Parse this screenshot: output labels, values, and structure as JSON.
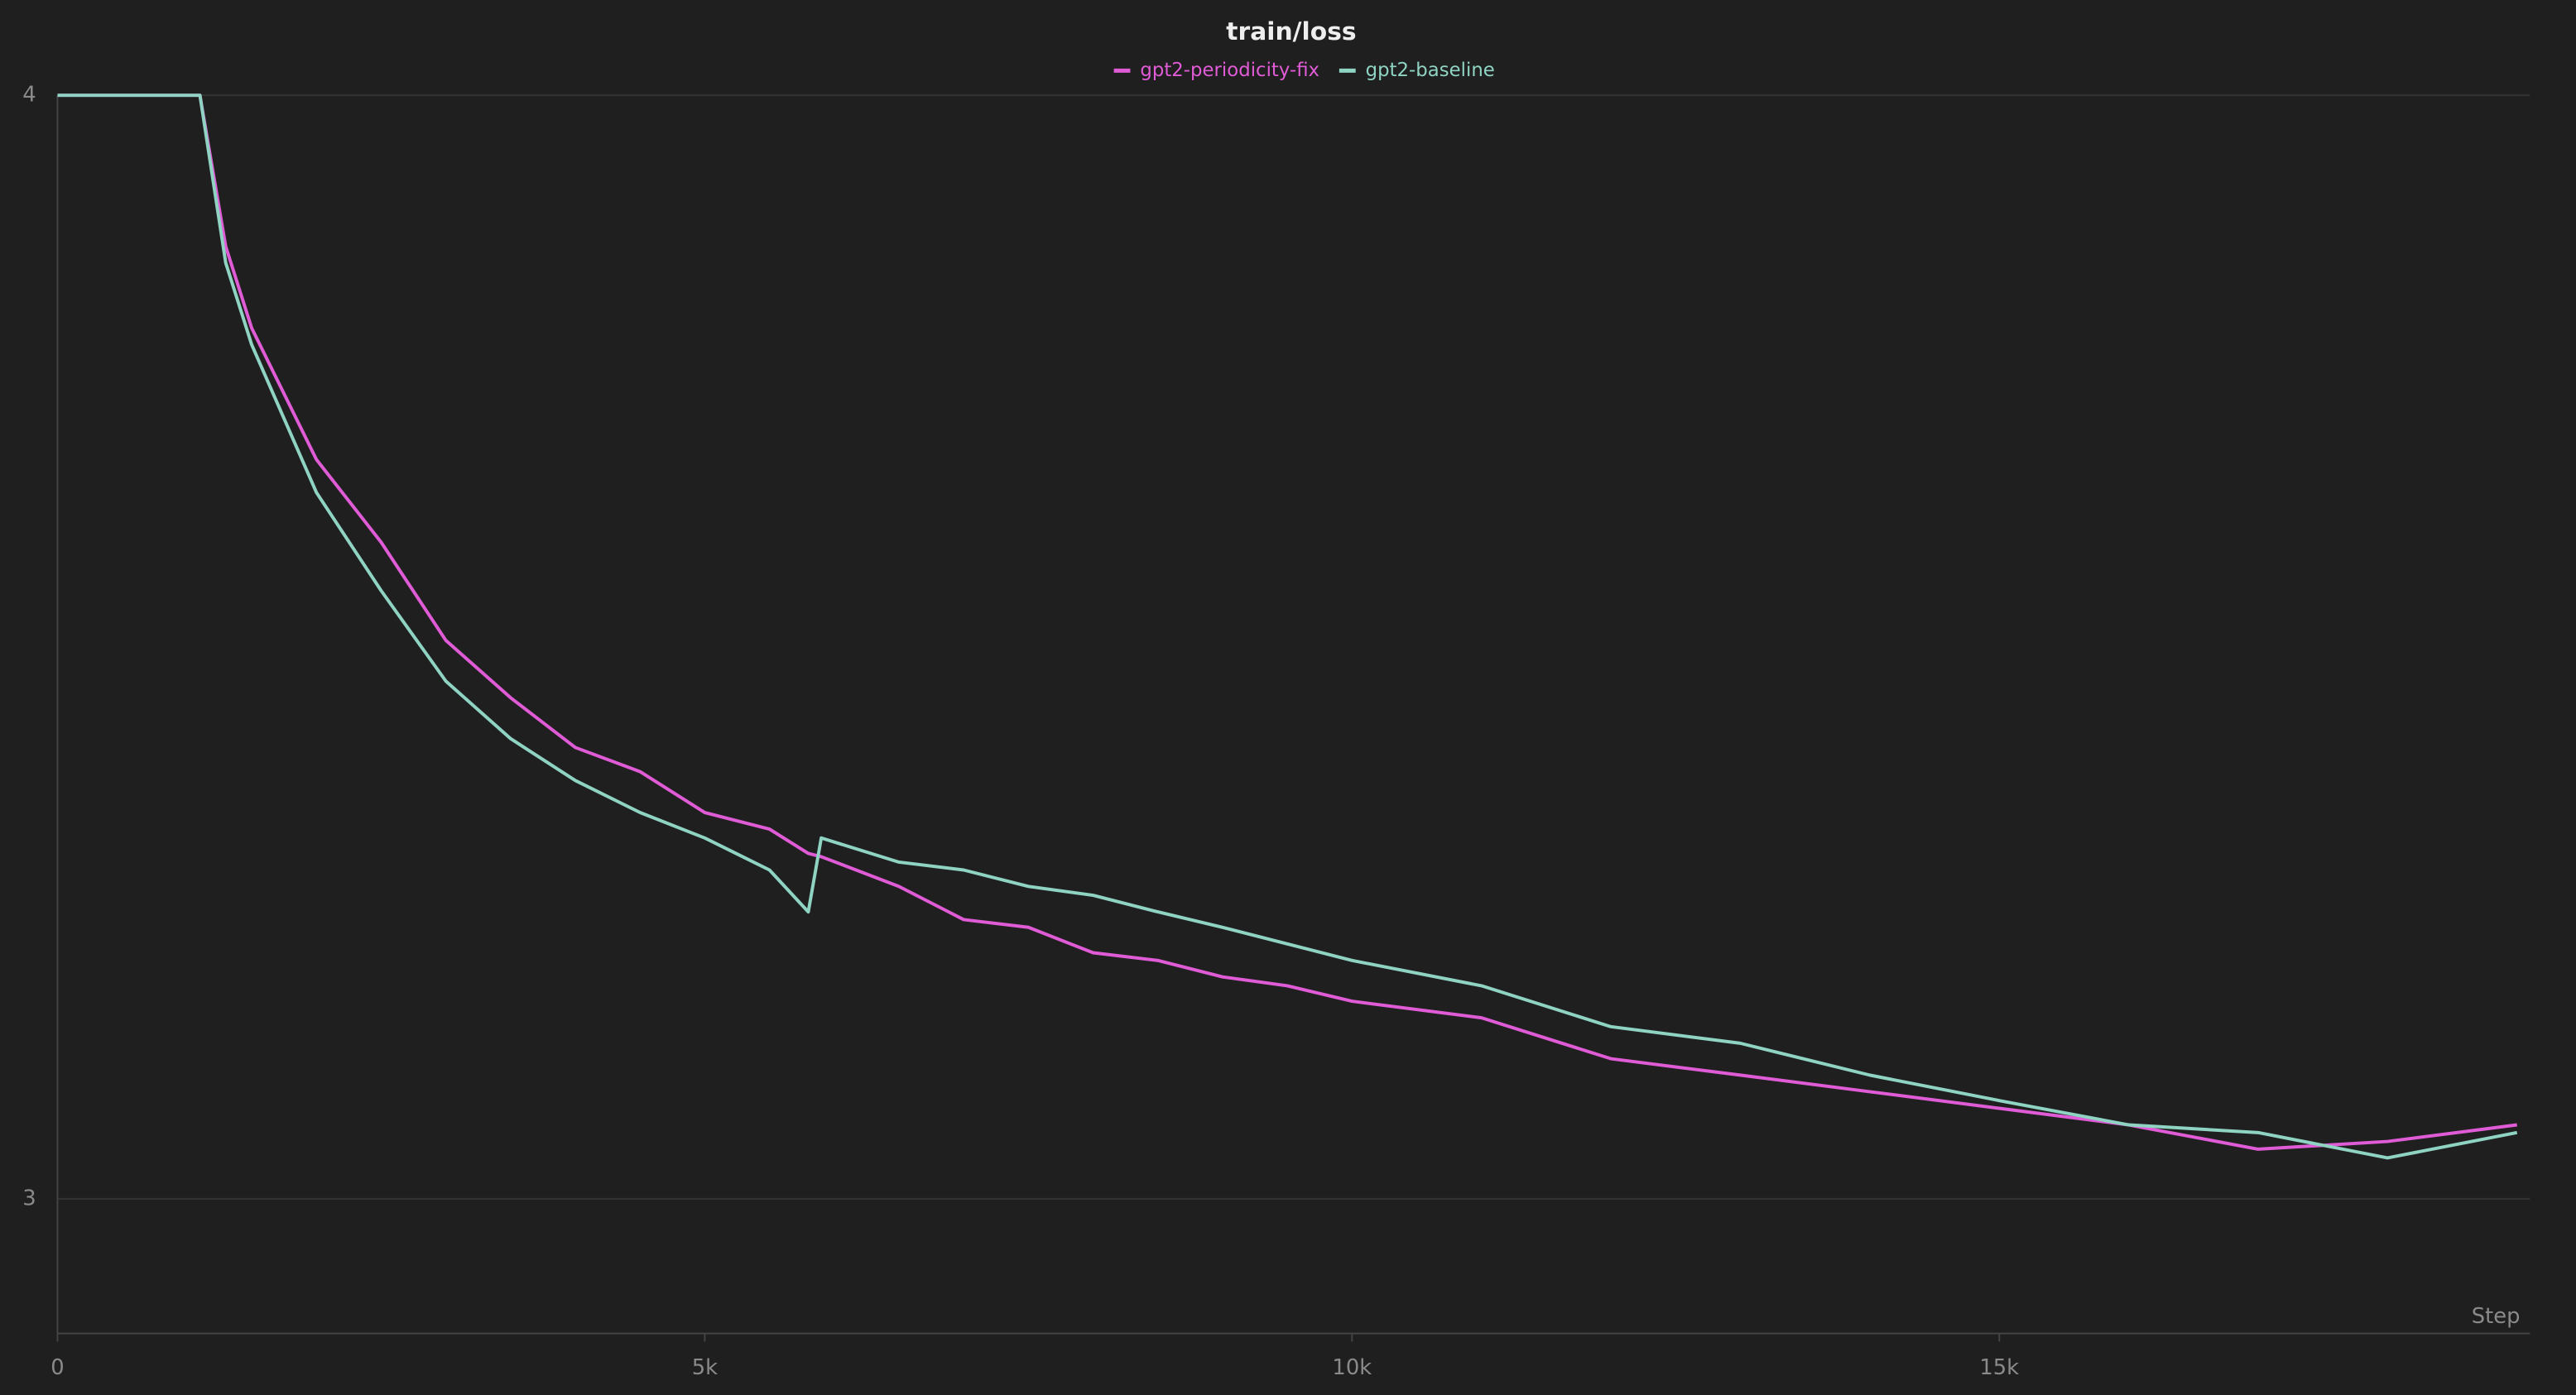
{
  "chart_data": {
    "type": "line",
    "title": "train/loss",
    "xlabel": "Step",
    "x": [
      0,
      1100,
      1300,
      1500,
      2000,
      2500,
      3000,
      3500,
      4000,
      4500,
      5000,
      5500,
      5800,
      5900,
      6500,
      7000,
      7500,
      8000,
      8500,
      9000,
      9500,
      10000,
      11000,
      12000,
      13000,
      14000,
      15000,
      16000,
      17000,
      18000,
      19000
    ],
    "series": [
      {
        "name": "gpt2-periodicity-fix",
        "color": "#e05bd6",
        "values": [
          4,
          4,
          3.863,
          3.789,
          3.67,
          3.595,
          3.506,
          3.454,
          3.409,
          3.387,
          3.35,
          3.335,
          3.313,
          3.31,
          3.283,
          3.253,
          3.246,
          3.223,
          3.216,
          3.201,
          3.193,
          3.179,
          3.164,
          3.127,
          3.112,
          3.097,
          3.082,
          3.067,
          3.045,
          3.052,
          3.067
        ]
      },
      {
        "name": "gpt2-baseline",
        "color": "#8fd3c3",
        "values": [
          4,
          4,
          3.848,
          3.774,
          3.64,
          3.551,
          3.469,
          3.417,
          3.379,
          3.35,
          3.327,
          3.298,
          3.26,
          3.327,
          3.305,
          3.298,
          3.283,
          3.275,
          3.26,
          3.246,
          3.231,
          3.216,
          3.193,
          3.156,
          3.141,
          3.112,
          3.089,
          3.067,
          3.06,
          3.037,
          3.06
        ]
      }
    ],
    "xlim": [
      0,
      19100
    ],
    "ylim": [
      2.878,
      4
    ],
    "xticks": [
      0,
      {
        "value": 5000,
        "label": "5k"
      },
      {
        "value": 10000,
        "label": "10k"
      },
      {
        "value": 15000,
        "label": "15k"
      }
    ],
    "yticks": [
      3,
      4
    ],
    "grid": true,
    "legend": "top"
  }
}
